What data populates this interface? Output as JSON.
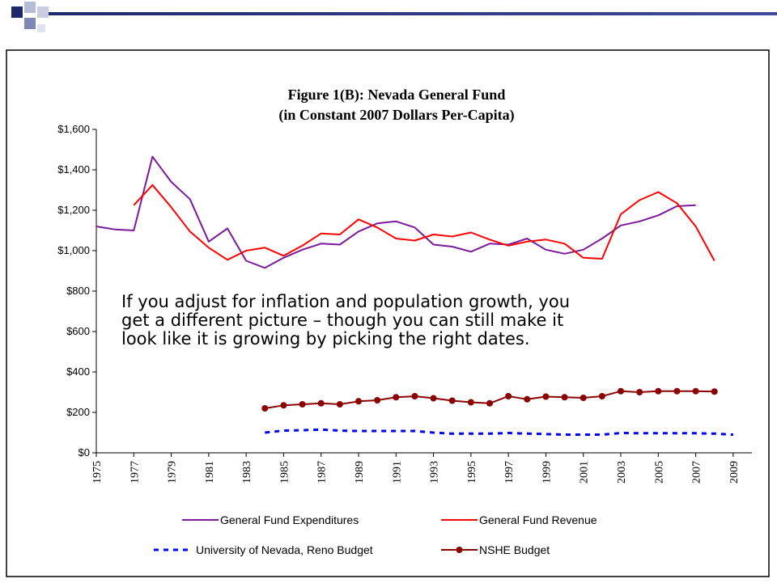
{
  "chart_data": {
    "type": "line",
    "title": "Figure 1(B):  Nevada General Fund",
    "subtitle": "(in Constant 2007 Dollars Per-Capita)",
    "annotation": [
      "If you adjust for inflation and population growth, you",
      "get a different picture – though you can still make it",
      "look like it is growing by picking the right dates."
    ],
    "x": [
      1975,
      1976,
      1977,
      1978,
      1979,
      1980,
      1981,
      1982,
      1983,
      1984,
      1985,
      1986,
      1987,
      1988,
      1989,
      1990,
      1991,
      1992,
      1993,
      1994,
      1995,
      1996,
      1997,
      1998,
      1999,
      2000,
      2001,
      2002,
      2003,
      2004,
      2005,
      2006,
      2007,
      2008,
      2009
    ],
    "xlim": [
      1975,
      2010
    ],
    "xticks": [
      1975,
      1977,
      1979,
      1981,
      1983,
      1985,
      1987,
      1989,
      1991,
      1993,
      1995,
      1997,
      1999,
      2001,
      2003,
      2005,
      2007,
      2009
    ],
    "ylim": [
      0,
      1600
    ],
    "yticks": [
      {
        "value": 0,
        "label": "$0"
      },
      {
        "value": 200,
        "label": "$200"
      },
      {
        "value": 400,
        "label": "$400"
      },
      {
        "value": 600,
        "label": "$600"
      },
      {
        "value": 800,
        "label": "$800"
      },
      {
        "value": 1000,
        "label": "$1,000"
      },
      {
        "value": 1200,
        "label": "$1,200"
      },
      {
        "value": 1400,
        "label": "$1,400"
      },
      {
        "value": 1600,
        "label": "$1,600"
      }
    ],
    "series": [
      {
        "name": "General Fund Expenditures",
        "color": "#7b1a9a",
        "style": "solid",
        "values": [
          1120,
          1105,
          1100,
          1465,
          1340,
          1255,
          1045,
          1110,
          950,
          915,
          965,
          1005,
          1035,
          1030,
          1095,
          1135,
          1145,
          1115,
          1030,
          1020,
          995,
          1035,
          1030,
          1060,
          1005,
          985,
          1005,
          1060,
          1125,
          1145,
          1175,
          1220,
          1225,
          null,
          null
        ]
      },
      {
        "name": "General Fund Revenue",
        "color": "#ff0000",
        "style": "solid",
        "values": [
          null,
          null,
          1225,
          1325,
          1215,
          1095,
          1015,
          955,
          1000,
          1015,
          975,
          1025,
          1085,
          1080,
          1155,
          1115,
          1060,
          1050,
          1080,
          1070,
          1090,
          1055,
          1025,
          1045,
          1055,
          1035,
          965,
          960,
          1180,
          1250,
          1290,
          1235,
          1120,
          950,
          null
        ]
      },
      {
        "name": "University of Nevada, Reno Budget",
        "color": "#0000ff",
        "style": "dashed",
        "values": [
          null,
          null,
          null,
          null,
          null,
          null,
          null,
          null,
          null,
          100,
          110,
          112,
          115,
          110,
          108,
          108,
          108,
          108,
          100,
          95,
          95,
          95,
          98,
          95,
          93,
          90,
          90,
          90,
          98,
          97,
          97,
          97,
          97,
          95,
          90
        ]
      },
      {
        "name": "NSHE Budget",
        "color": "#8b0000",
        "style": "solid",
        "marker": "circle",
        "values": [
          null,
          null,
          null,
          null,
          null,
          null,
          null,
          null,
          null,
          220,
          235,
          240,
          245,
          240,
          255,
          260,
          275,
          280,
          270,
          258,
          250,
          245,
          280,
          265,
          278,
          275,
          272,
          280,
          305,
          300,
          305,
          305,
          305,
          303,
          null
        ]
      }
    ]
  }
}
